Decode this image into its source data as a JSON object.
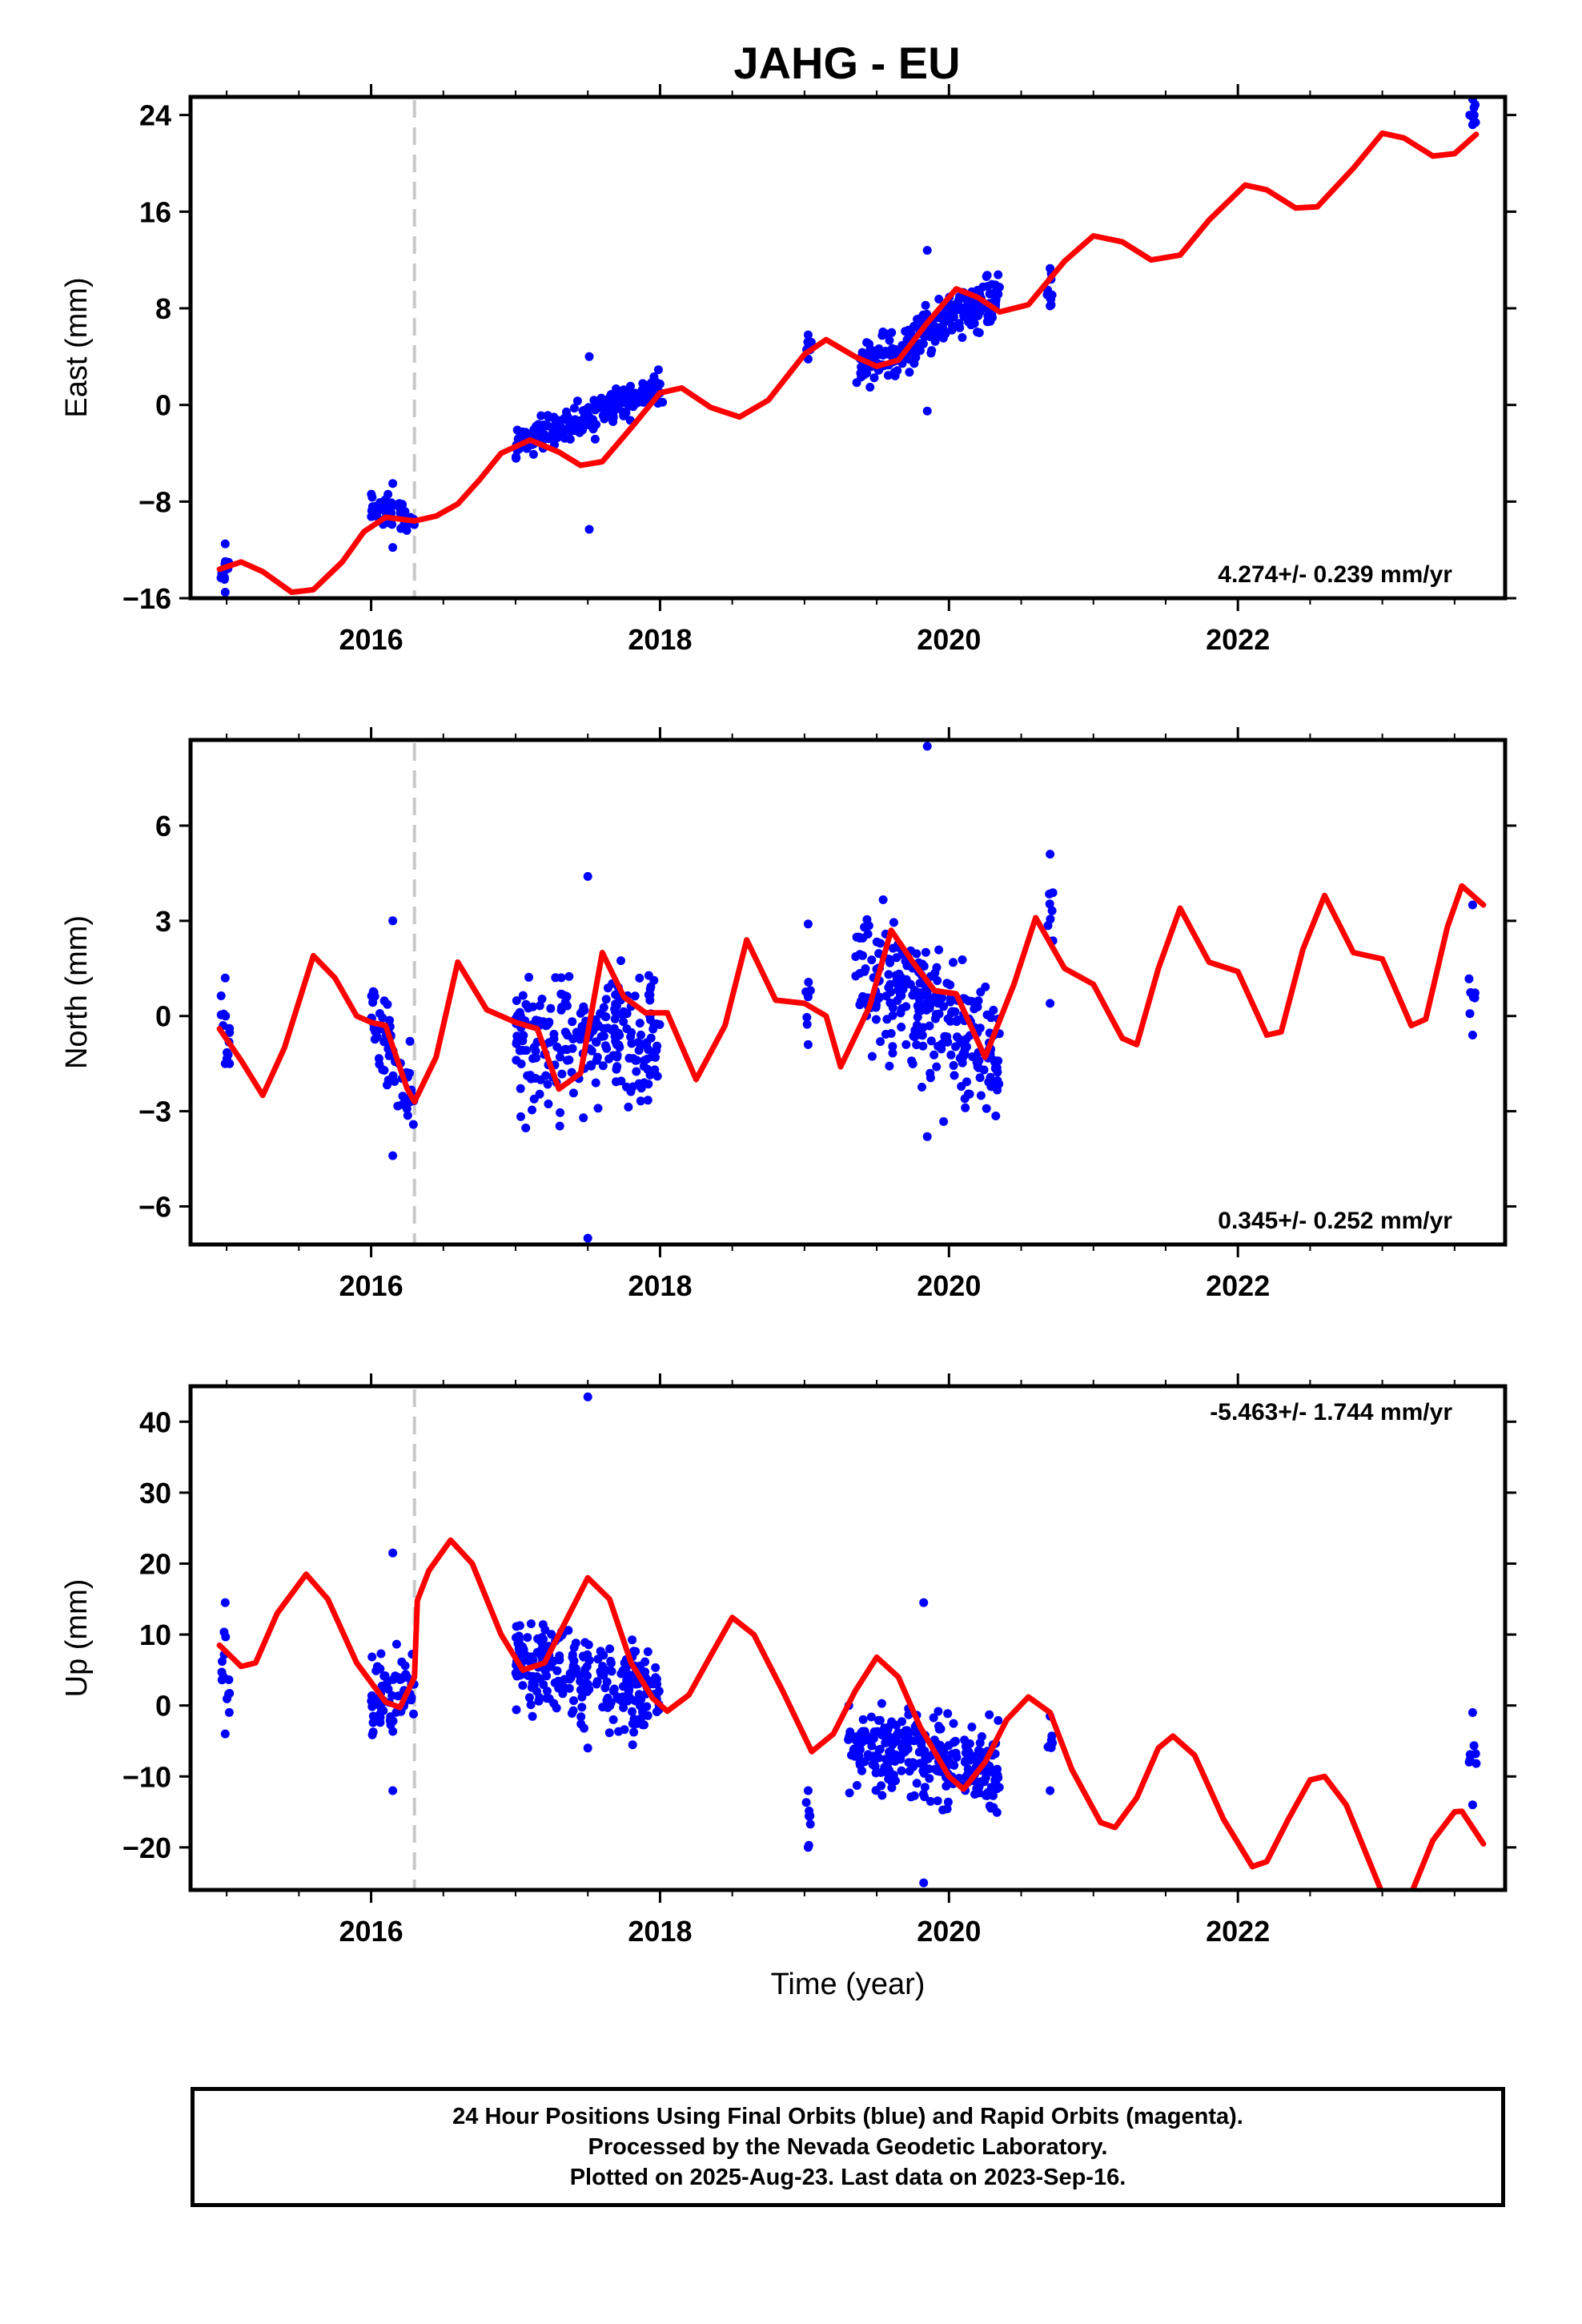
{
  "title": "JAHG - EU",
  "colors": {
    "final_orbits": "#0000ff",
    "model": "#ff0000",
    "event_line": "#c8c8c8"
  },
  "chart_data": [
    {
      "type": "scatter",
      "name": "east",
      "ylabel": "East (mm)",
      "xlabel": "",
      "xlim": [
        2014.75,
        2023.85
      ],
      "ylim": [
        -16,
        25.5
      ],
      "yticks": [
        -16,
        -8,
        0,
        8,
        16,
        24
      ],
      "yticklabels": [
        "−16",
        "−8",
        "0",
        "8",
        "16",
        "24"
      ],
      "xticks": [
        2016,
        2018,
        2020,
        2022
      ],
      "xticklabels": [
        "2016",
        "2018",
        "2020",
        "2022"
      ],
      "rate_label": "4.274+/- 0.239 mm/yr",
      "event_line_x": 2016.3,
      "data_segments": [
        {
          "x": [
            2014.96,
            2015.02
          ],
          "n": 12,
          "y_start": -13.8,
          "y_end": -13.6,
          "scatter": 1.0,
          "ymin": -15.5,
          "ymax": -11.5
        },
        {
          "x": [
            2016.0,
            2016.3
          ],
          "n": 60,
          "y_start": -8.5,
          "y_end": -9.5,
          "scatter": 0.9,
          "ymin": -11.8,
          "ymax": -6.5
        },
        {
          "x": [
            2017.0,
            2018.02
          ],
          "n": 230,
          "y_start": -3.2,
          "y_end": 1.5,
          "scatter": 1.0,
          "ymin": -10.3,
          "ymax": 4.0
        },
        {
          "x": [
            2019.0,
            2019.05
          ],
          "n": 6,
          "y_start": 4.8,
          "y_end": 4.8,
          "scatter": 0.6,
          "ymin": 3.8,
          "ymax": 5.8
        },
        {
          "x": [
            2019.35,
            2020.35
          ],
          "n": 260,
          "y_start": 3.0,
          "y_end": 9.0,
          "scatter": 1.4,
          "ymin": -0.5,
          "ymax": 12.8
        },
        {
          "x": [
            2020.68,
            2020.72
          ],
          "n": 8,
          "y_start": 9.5,
          "y_end": 9.5,
          "scatter": 0.8,
          "ymin": 8.2,
          "ymax": 11.3
        },
        {
          "x": [
            2023.6,
            2023.65
          ],
          "n": 6,
          "y_start": 24.0,
          "y_end": 24.0,
          "scatter": 0.6,
          "ymin": 23.2,
          "ymax": 25.3
        }
      ],
      "model": {
        "points": [
          [
            2014.95,
            -13.6
          ],
          [
            2015.1,
            -13.0
          ],
          [
            2015.25,
            -13.8
          ],
          [
            2015.45,
            -15.5
          ],
          [
            2015.6,
            -15.3
          ],
          [
            2015.8,
            -13.0
          ],
          [
            2015.95,
            -10.5
          ],
          [
            2016.1,
            -9.3
          ],
          [
            2016.3,
            -9.6
          ],
          [
            2016.45,
            -9.2
          ],
          [
            2016.6,
            -8.2
          ],
          [
            2016.75,
            -6.2
          ],
          [
            2016.9,
            -4.0
          ],
          [
            2017.1,
            -2.9
          ],
          [
            2017.3,
            -3.9
          ],
          [
            2017.45,
            -5.0
          ],
          [
            2017.6,
            -4.7
          ],
          [
            2017.8,
            -1.9
          ],
          [
            2018.0,
            1.0
          ],
          [
            2018.15,
            1.4
          ],
          [
            2018.35,
            -0.2
          ],
          [
            2018.55,
            -1.0
          ],
          [
            2018.75,
            0.4
          ],
          [
            2019.0,
            4.2
          ],
          [
            2019.15,
            5.4
          ],
          [
            2019.35,
            4.0
          ],
          [
            2019.5,
            3.2
          ],
          [
            2019.65,
            3.7
          ],
          [
            2019.85,
            6.8
          ],
          [
            2020.05,
            9.6
          ],
          [
            2020.2,
            8.9
          ],
          [
            2020.35,
            7.7
          ],
          [
            2020.55,
            8.3
          ],
          [
            2020.8,
            11.9
          ],
          [
            2021.0,
            14.0
          ],
          [
            2021.2,
            13.5
          ],
          [
            2021.4,
            12.0
          ],
          [
            2021.6,
            12.4
          ],
          [
            2021.8,
            15.3
          ],
          [
            2022.05,
            18.2
          ],
          [
            2022.2,
            17.8
          ],
          [
            2022.4,
            16.3
          ],
          [
            2022.55,
            16.4
          ],
          [
            2022.8,
            19.6
          ],
          [
            2023.0,
            22.5
          ],
          [
            2023.15,
            22.1
          ],
          [
            2023.35,
            20.6
          ],
          [
            2023.5,
            20.8
          ],
          [
            2023.65,
            22.4
          ]
        ]
      }
    },
    {
      "type": "scatter",
      "name": "north",
      "ylabel": "North (mm)",
      "xlabel": "",
      "xlim": [
        2014.75,
        2023.85
      ],
      "ylim": [
        -7.2,
        8.7
      ],
      "yticks": [
        -6,
        -3,
        0,
        3,
        6
      ],
      "yticklabels": [
        "−6",
        "−3",
        "0",
        "3",
        "6"
      ],
      "xticks": [
        2016,
        2018,
        2020,
        2022
      ],
      "xticklabels": [
        "2016",
        "2018",
        "2020",
        "2022"
      ],
      "rate_label": "0.345+/- 0.252 mm/yr",
      "event_line_x": 2016.3,
      "data_segments": [
        {
          "x": [
            2014.96,
            2015.02
          ],
          "n": 12,
          "y_start": 0.2,
          "y_end": -0.6,
          "scatter": 0.6,
          "ymin": -1.5,
          "ymax": 1.2
        },
        {
          "x": [
            2016.0,
            2016.3
          ],
          "n": 65,
          "y_start": 0.2,
          "y_end": -2.8,
          "scatter": 0.9,
          "ymin": -4.4,
          "ymax": 3.0
        },
        {
          "x": [
            2017.0,
            2018.0
          ],
          "n": 240,
          "y_start": -0.8,
          "y_end": -0.6,
          "scatter": 1.5,
          "ymin": -7.0,
          "ymax": 4.4
        },
        {
          "x": [
            2019.0,
            2019.05
          ],
          "n": 6,
          "y_start": 0.6,
          "y_end": 0.6,
          "scatter": 1.0,
          "ymin": -0.9,
          "ymax": 2.9
        },
        {
          "x": [
            2019.35,
            2020.35
          ],
          "n": 270,
          "y_start": 1.8,
          "y_end": -1.4,
          "scatter": 1.4,
          "ymin": -3.8,
          "ymax": 8.5
        },
        {
          "x": [
            2020.68,
            2020.72
          ],
          "n": 7,
          "y_start": 2.8,
          "y_end": 2.8,
          "scatter": 1.2,
          "ymin": 0.4,
          "ymax": 5.1
        },
        {
          "x": [
            2023.6,
            2023.65
          ],
          "n": 6,
          "y_start": 1.2,
          "y_end": 1.2,
          "scatter": 1.3,
          "ymin": -0.6,
          "ymax": 3.5
        }
      ],
      "model": {
        "points": [
          [
            2014.95,
            -0.4
          ],
          [
            2015.1,
            -1.4
          ],
          [
            2015.25,
            -2.5
          ],
          [
            2015.4,
            -1.0
          ],
          [
            2015.6,
            1.9
          ],
          [
            2015.75,
            1.2
          ],
          [
            2015.9,
            0.0
          ],
          [
            2016.0,
            -0.2
          ],
          [
            2016.1,
            -0.3
          ],
          [
            2016.25,
            -2.3
          ],
          [
            2016.3,
            -2.7
          ],
          [
            2016.45,
            -1.3
          ],
          [
            2016.6,
            1.7
          ],
          [
            2016.8,
            0.2
          ],
          [
            2017.0,
            -0.2
          ],
          [
            2017.15,
            -0.4
          ],
          [
            2017.3,
            -2.3
          ],
          [
            2017.45,
            -1.8
          ],
          [
            2017.6,
            2.0
          ],
          [
            2017.75,
            0.6
          ],
          [
            2017.9,
            0.1
          ],
          [
            2018.05,
            0.1
          ],
          [
            2018.25,
            -2.0
          ],
          [
            2018.45,
            -0.3
          ],
          [
            2018.6,
            2.4
          ],
          [
            2018.8,
            0.5
          ],
          [
            2019.0,
            0.4
          ],
          [
            2019.15,
            0.0
          ],
          [
            2019.25,
            -1.6
          ],
          [
            2019.45,
            0.3
          ],
          [
            2019.6,
            2.7
          ],
          [
            2019.75,
            1.7
          ],
          [
            2019.9,
            0.8
          ],
          [
            2020.05,
            0.7
          ],
          [
            2020.25,
            -1.3
          ],
          [
            2020.45,
            1.0
          ],
          [
            2020.6,
            3.1
          ],
          [
            2020.8,
            1.5
          ],
          [
            2021.0,
            1.0
          ],
          [
            2021.2,
            -0.7
          ],
          [
            2021.3,
            -0.9
          ],
          [
            2021.45,
            1.5
          ],
          [
            2021.6,
            3.4
          ],
          [
            2021.8,
            1.7
          ],
          [
            2022.0,
            1.4
          ],
          [
            2022.2,
            -0.6
          ],
          [
            2022.3,
            -0.5
          ],
          [
            2022.45,
            2.1
          ],
          [
            2022.6,
            3.8
          ],
          [
            2022.8,
            2.0
          ],
          [
            2023.0,
            1.8
          ],
          [
            2023.2,
            -0.3
          ],
          [
            2023.3,
            -0.1
          ],
          [
            2023.45,
            2.8
          ],
          [
            2023.55,
            4.1
          ],
          [
            2023.7,
            3.5
          ]
        ]
      }
    },
    {
      "type": "scatter",
      "name": "up",
      "ylabel": "Up (mm)",
      "xlabel": "Time (year)",
      "xlim": [
        2014.75,
        2023.85
      ],
      "ylim": [
        -26,
        45
      ],
      "yticks": [
        -20,
        -10,
        0,
        10,
        20,
        30,
        40
      ],
      "yticklabels": [
        "−20",
        "−10",
        "0",
        "10",
        "20",
        "30",
        "40"
      ],
      "xticks": [
        2016,
        2018,
        2020,
        2022
      ],
      "xticklabels": [
        "2016",
        "2018",
        "2020",
        "2022"
      ],
      "rate_label": "-5.463+/- 1.744 mm/yr",
      "event_line_x": 2016.3,
      "data_segments": [
        {
          "x": [
            2014.96,
            2015.02
          ],
          "n": 12,
          "y_start": 7.0,
          "y_end": 4.0,
          "scatter": 5.0,
          "ymin": -4.0,
          "ymax": 14.5
        },
        {
          "x": [
            2016.0,
            2016.3
          ],
          "n": 65,
          "y_start": 0.5,
          "y_end": 3.0,
          "scatter": 4.0,
          "ymin": -12.0,
          "ymax": 21.5
        },
        {
          "x": [
            2017.0,
            2018.0
          ],
          "n": 240,
          "y_start": 6.0,
          "y_end": 2.0,
          "scatter": 4.5,
          "ymin": -6.0,
          "ymax": 43.5
        },
        {
          "x": [
            2019.0,
            2019.05
          ],
          "n": 6,
          "y_start": -16.0,
          "y_end": -16.0,
          "scatter": 2.5,
          "ymin": -20.0,
          "ymax": -12.0
        },
        {
          "x": [
            2019.3,
            2020.35
          ],
          "n": 280,
          "y_start": -5.0,
          "y_end": -9.0,
          "scatter": 4.0,
          "ymin": -25.0,
          "ymax": 14.5
        },
        {
          "x": [
            2020.68,
            2020.72
          ],
          "n": 7,
          "y_start": -6.0,
          "y_end": -6.0,
          "scatter": 2.0,
          "ymin": -12.0,
          "ymax": -1.5
        },
        {
          "x": [
            2023.6,
            2023.65
          ],
          "n": 6,
          "y_start": -7.0,
          "y_end": -7.0,
          "scatter": 3.5,
          "ymin": -14.0,
          "ymax": -1.0
        }
      ],
      "model": {
        "points": [
          [
            2014.95,
            8.5
          ],
          [
            2015.1,
            5.5
          ],
          [
            2015.2,
            6.0
          ],
          [
            2015.35,
            13.0
          ],
          [
            2015.55,
            18.5
          ],
          [
            2015.7,
            15.0
          ],
          [
            2015.9,
            6.0
          ],
          [
            2016.1,
            0.5
          ],
          [
            2016.2,
            -0.3
          ],
          [
            2016.3,
            4.0
          ],
          [
            2016.32,
            14.8
          ],
          [
            2016.4,
            19.0
          ],
          [
            2016.55,
            23.3
          ],
          [
            2016.7,
            20.0
          ],
          [
            2016.9,
            10.0
          ],
          [
            2017.05,
            5.0
          ],
          [
            2017.2,
            6.0
          ],
          [
            2017.35,
            12.0
          ],
          [
            2017.5,
            18.0
          ],
          [
            2017.65,
            15.0
          ],
          [
            2017.8,
            6.0
          ],
          [
            2017.95,
            1.0
          ],
          [
            2018.05,
            -0.8
          ],
          [
            2018.2,
            1.5
          ],
          [
            2018.35,
            7.0
          ],
          [
            2018.5,
            12.4
          ],
          [
            2018.65,
            10.0
          ],
          [
            2018.85,
            2.0
          ],
          [
            2019.05,
            -6.5
          ],
          [
            2019.2,
            -4.0
          ],
          [
            2019.35,
            2.0
          ],
          [
            2019.5,
            6.8
          ],
          [
            2019.65,
            4.0
          ],
          [
            2019.8,
            -3.0
          ],
          [
            2020.0,
            -10.0
          ],
          [
            2020.1,
            -11.8
          ],
          [
            2020.25,
            -8.0
          ],
          [
            2020.4,
            -2.0
          ],
          [
            2020.55,
            1.2
          ],
          [
            2020.7,
            -1.0
          ],
          [
            2020.85,
            -9.0
          ],
          [
            2021.05,
            -16.5
          ],
          [
            2021.15,
            -17.2
          ],
          [
            2021.3,
            -13.0
          ],
          [
            2021.45,
            -6.0
          ],
          [
            2021.55,
            -4.3
          ],
          [
            2021.7,
            -7.0
          ],
          [
            2021.9,
            -16.0
          ],
          [
            2022.1,
            -22.7
          ],
          [
            2022.2,
            -22.0
          ],
          [
            2022.35,
            -16.0
          ],
          [
            2022.5,
            -10.5
          ],
          [
            2022.6,
            -10.0
          ],
          [
            2022.75,
            -14.0
          ],
          [
            2022.95,
            -24.0
          ],
          [
            2023.0,
            -26.5
          ],
          [
            2023.2,
            -26.5
          ],
          [
            2023.35,
            -19.0
          ],
          [
            2023.5,
            -15.0
          ],
          [
            2023.55,
            -14.9
          ],
          [
            2023.7,
            -19.5
          ]
        ]
      }
    }
  ],
  "caption": {
    "line1": "24 Hour Positions Using Final Orbits (blue) and Rapid Orbits (magenta).",
    "line2": "Processed by the Nevada Geodetic Laboratory.",
    "line3": "Plotted on 2025-Aug-23. Last data on 2023-Sep-16."
  }
}
